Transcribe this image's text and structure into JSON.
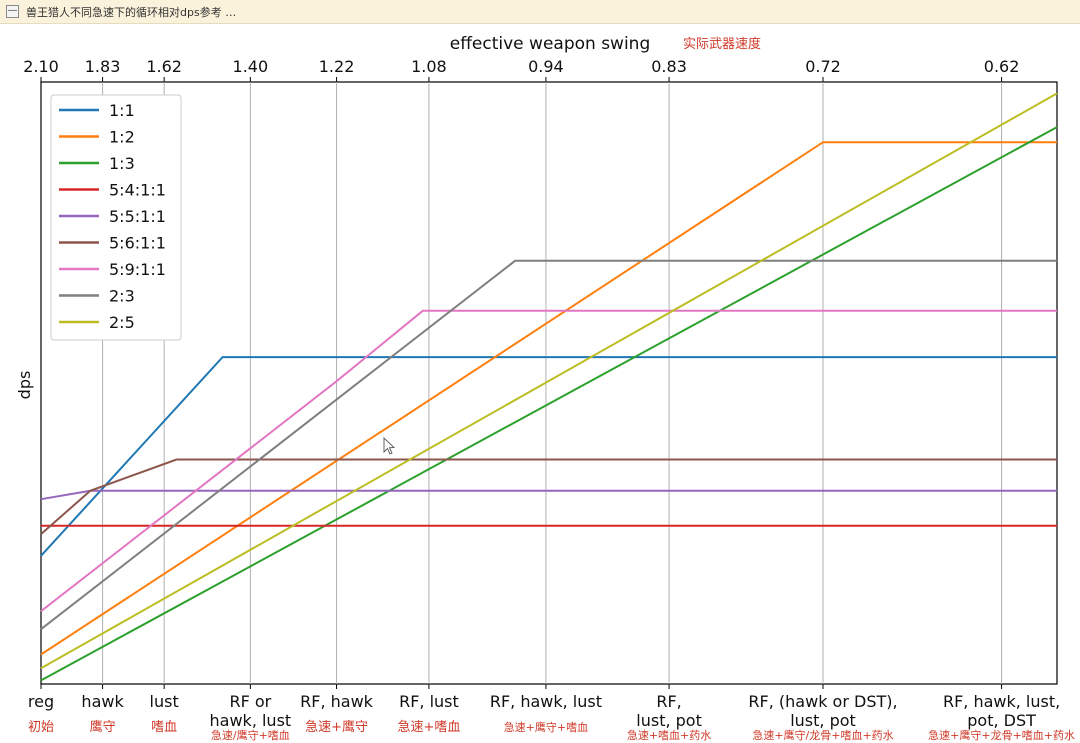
{
  "window": {
    "menu_glyph": "—",
    "title": "兽王猎人不同急速下的循环相对dps参考 …"
  },
  "chart_data": {
    "type": "line",
    "top_axis": {
      "label": "effective weapon swing",
      "label_cn": "实际武器速度",
      "ticks": [
        "2.10",
        "1.83",
        "1.62",
        "1.40",
        "1.22",
        "1.08",
        "0.94",
        "0.83",
        "0.72",
        "0.62"
      ]
    },
    "x_ticks": [
      {
        "label": "reg",
        "cn": "初始"
      },
      {
        "label": "hawk",
        "cn": "鹰守"
      },
      {
        "label": "lust",
        "cn": "嗜血"
      },
      {
        "label": "RF or\nhawk, lust",
        "cn": "急速/鹰守+嗜血"
      },
      {
        "label": "RF, hawk",
        "cn": "急速+鹰守"
      },
      {
        "label": "RF, lust",
        "cn": "急速+嗜血"
      },
      {
        "label": "RF, hawk, lust",
        "cn": "急速+鹰守+嗜血"
      },
      {
        "label": "RF,\nlust, pot",
        "cn": "急速+嗜血+药水"
      },
      {
        "label": "RF, (hawk or DST),\nlust, pot",
        "cn": "急速+鹰守/龙骨+嗜血+药水"
      },
      {
        "label": "RF, hawk, lust,\npot, DST",
        "cn": "急速+鹰守+龙骨+嗜血+药水"
      }
    ],
    "x_tick_positions": [
      0,
      1.0,
      2.0,
      3.4,
      4.8,
      6.3,
      8.2,
      10.2,
      12.7,
      15.6
    ],
    "xlim": [
      0,
      16.5
    ],
    "ylim": [
      0,
      100
    ],
    "ylabel": "dps",
    "grid": "vertical",
    "legend": "top-left",
    "series": [
      {
        "name": "1:1",
        "color": "#1f77b4",
        "points": [
          [
            0,
            21.3
          ],
          [
            2.95,
            54.3
          ],
          [
            16.5,
            54.3
          ]
        ]
      },
      {
        "name": "1:2",
        "color": "#ff7f0e",
        "points": [
          [
            0,
            4.9
          ],
          [
            12.7,
            90.0
          ],
          [
            16.5,
            90.0
          ]
        ]
      },
      {
        "name": "1:3",
        "color": "#2ca02c",
        "points": [
          [
            0,
            0.6
          ],
          [
            16.5,
            92.5
          ]
        ]
      },
      {
        "name": "5:4:1:1",
        "color": "#d62728",
        "points": [
          [
            0,
            26.3
          ],
          [
            16.5,
            26.3
          ]
        ]
      },
      {
        "name": "5:5:1:1",
        "color": "#9467bd",
        "points": [
          [
            0,
            30.7
          ],
          [
            0.8,
            32.1
          ],
          [
            16.5,
            32.1
          ]
        ]
      },
      {
        "name": "5:6:1:1",
        "color": "#8c564b",
        "points": [
          [
            0,
            24.9
          ],
          [
            0.8,
            32.1
          ],
          [
            2.2,
            37.3
          ],
          [
            16.5,
            37.3
          ]
        ]
      },
      {
        "name": "5:9:1:1",
        "color": "#e377c2",
        "points": [
          [
            0,
            12.1
          ],
          [
            4.8,
            50.3
          ],
          [
            6.2,
            62.0
          ],
          [
            16.5,
            62.0
          ]
        ]
      },
      {
        "name": "2:3",
        "color": "#7f7f7f",
        "points": [
          [
            0,
            9.1
          ],
          [
            7.7,
            70.3
          ],
          [
            16.5,
            70.3
          ]
        ]
      },
      {
        "name": "2:5",
        "color": "#bcbd22",
        "points": [
          [
            0,
            2.6
          ],
          [
            16.5,
            98.1
          ]
        ]
      }
    ]
  }
}
